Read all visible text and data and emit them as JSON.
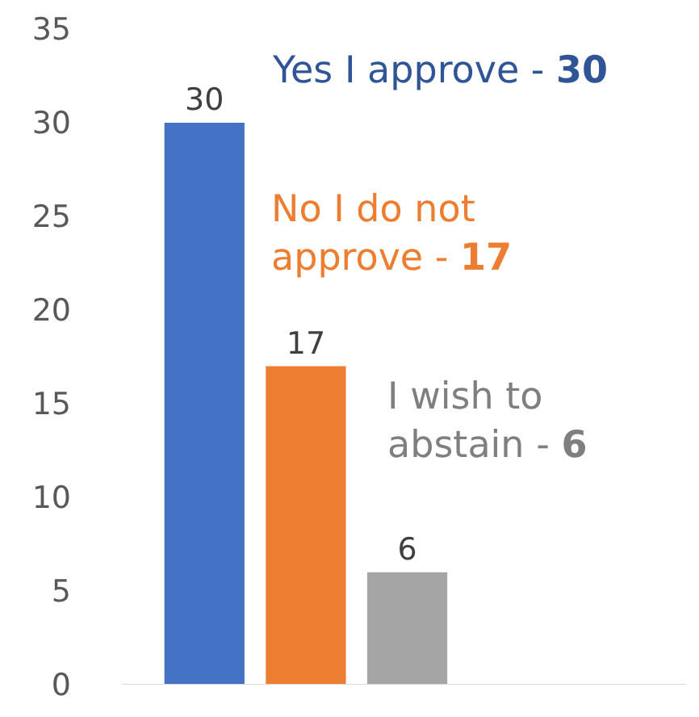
{
  "chart_data": {
    "type": "bar",
    "categories": [
      null,
      null,
      null
    ],
    "values": [
      30,
      17,
      6
    ],
    "colors": [
      "#4472c4",
      "#ed7d31",
      "#a5a5a5"
    ],
    "ylim": [
      0,
      35
    ],
    "yticks": [
      0,
      5,
      10,
      15,
      20,
      25,
      30,
      35
    ],
    "tick_labels": "y",
    "data_labels": true,
    "annotations": [
      "Yes I approve - 30",
      "No I do not approve - 17",
      "I wish to abstain - 6"
    ]
  }
}
